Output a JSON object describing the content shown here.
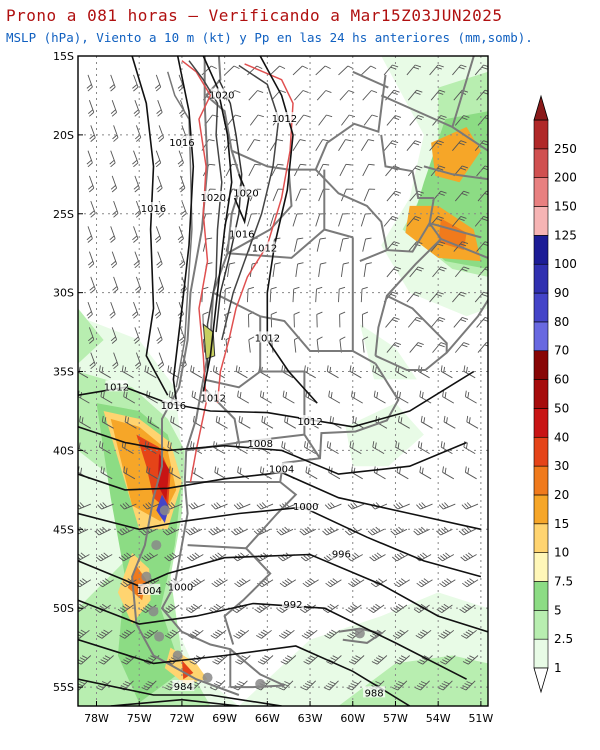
{
  "header": {
    "title": "Prono a 081 horas — Verificando a Mar15Z03JUN2025",
    "subtitle": "MSLP (hPa), Viento a 10 m (kt) y Pp en las 24 hs anteriores (mm,somb)."
  },
  "map": {
    "lon_labels": [
      "78W",
      "75W",
      "72W",
      "69W",
      "66W",
      "63W",
      "60W",
      "57W",
      "54W",
      "51W"
    ],
    "lat_labels": [
      "15S",
      "20S",
      "25S",
      "30S",
      "35S",
      "40S",
      "45S",
      "50S",
      "55S"
    ],
    "isobars": [
      {
        "label": "1020",
        "lon": -69.2,
        "lat": -17.5
      },
      {
        "label": "1012",
        "lon": -64.8,
        "lat": -19.0
      },
      {
        "label": "1016",
        "lon": -72.0,
        "lat": -20.5
      },
      {
        "label": "1016",
        "lon": -74.0,
        "lat": -24.7
      },
      {
        "label": "1020",
        "lon": -69.8,
        "lat": -24.0
      },
      {
        "label": "1020",
        "lon": -67.5,
        "lat": -23.7
      },
      {
        "label": "1016",
        "lon": -67.8,
        "lat": -26.3
      },
      {
        "label": "1012",
        "lon": -66.2,
        "lat": -27.2
      },
      {
        "label": "1012",
        "lon": -66.0,
        "lat": -32.9
      },
      {
        "label": "1012",
        "lon": -76.6,
        "lat": -36.0
      },
      {
        "label": "1016",
        "lon": -72.6,
        "lat": -37.2
      },
      {
        "label": "1012",
        "lon": -69.8,
        "lat": -36.7
      },
      {
        "label": "1012",
        "lon": -63.0,
        "lat": -38.2
      },
      {
        "label": "1008",
        "lon": -66.5,
        "lat": -39.6
      },
      {
        "label": "1004",
        "lon": -65.0,
        "lat": -41.2
      },
      {
        "label": "1000",
        "lon": -63.3,
        "lat": -43.6
      },
      {
        "label": "996",
        "lon": -60.8,
        "lat": -46.6
      },
      {
        "label": "1004",
        "lon": -74.3,
        "lat": -48.9
      },
      {
        "label": "1000",
        "lon": -72.1,
        "lat": -48.7
      },
      {
        "label": "992",
        "lon": -64.2,
        "lat": -49.8
      },
      {
        "label": "984",
        "lon": -71.9,
        "lat": -55.0
      },
      {
        "label": "988",
        "lon": -58.5,
        "lat": -55.4
      }
    ]
  },
  "colorbar": {
    "labels": [
      "1",
      "2.5",
      "5",
      "7.5",
      "10",
      "15",
      "20",
      "30",
      "40",
      "50",
      "60",
      "70",
      "80",
      "90",
      "100",
      "125",
      "150",
      "200",
      "250"
    ],
    "colors": [
      "#e8fbe6",
      "#b8eeb0",
      "#8cdc84",
      "#fff7b8",
      "#ffd470",
      "#f6a628",
      "#f07a1c",
      "#e54418",
      "#c81414",
      "#a60c0c",
      "#880606",
      "#6868e0",
      "#4444c8",
      "#3030b0",
      "#1c1c96",
      "#f6b4b4",
      "#e88080",
      "#d05050",
      "#b02828"
    ],
    "tip_top_color": "#8a1a1a"
  }
}
